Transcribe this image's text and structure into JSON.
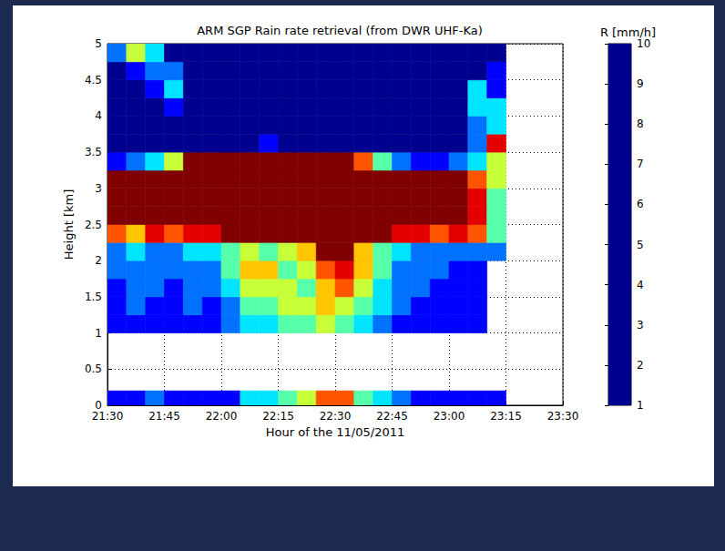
{
  "chart_data": {
    "type": "heatmap",
    "title": "ARM SGP Rain rate retrieval (from DWR UHF-Ka)",
    "x_label": "Hour of the 11/05/2011",
    "y_label": "Height [km]",
    "xlim": [
      1290,
      1410
    ],
    "xticks": [
      {
        "value": 1290,
        "label": "21:30"
      },
      {
        "value": 1305,
        "label": "21:45"
      },
      {
        "value": 1320,
        "label": "22:00"
      },
      {
        "value": 1335,
        "label": "22:15"
      },
      {
        "value": 1350,
        "label": "22:30"
      },
      {
        "value": 1365,
        "label": "22:45"
      },
      {
        "value": 1380,
        "label": "23:00"
      },
      {
        "value": 1395,
        "label": "23:15"
      },
      {
        "value": 1410,
        "label": "23:30"
      }
    ],
    "ylim": [
      0,
      5
    ],
    "yticks": [
      0,
      0.5,
      1,
      1.5,
      2,
      2.5,
      3,
      3.5,
      4,
      4.5,
      5
    ],
    "grid": true,
    "x_edges": [
      1290,
      1295,
      1300,
      1305,
      1310,
      1315,
      1320,
      1325,
      1330,
      1335,
      1340,
      1345,
      1350,
      1355,
      1360,
      1365,
      1370,
      1375,
      1380,
      1385,
      1390,
      1395
    ],
    "y_edges": [
      1,
      1.25,
      1.5,
      1.75,
      2,
      2.25,
      2.5,
      2.75,
      3,
      3.25,
      3.5,
      3.75,
      4,
      4.25,
      4.5,
      4.75,
      5
    ],
    "cells": [
      [
        2,
        2,
        2,
        2,
        2,
        2,
        3,
        4,
        4,
        5,
        5,
        6,
        5,
        4,
        3,
        2,
        2,
        2,
        2,
        2,
        null
      ],
      [
        2,
        3,
        2,
        2,
        3,
        2,
        3,
        5,
        5,
        6,
        6,
        7,
        6,
        5,
        4,
        3,
        2,
        2,
        2,
        2,
        null
      ],
      [
        2,
        3,
        3,
        2,
        3,
        3,
        4,
        6,
        6,
        6,
        5,
        7,
        8,
        6,
        4,
        3,
        3,
        2,
        2,
        2,
        null
      ],
      [
        3,
        3,
        3,
        3,
        3,
        3,
        5,
        7,
        7,
        5,
        6,
        8,
        9,
        7,
        5,
        3,
        3,
        3,
        2,
        2,
        null
      ],
      [
        3,
        4,
        3,
        3,
        4,
        4,
        5,
        6,
        5,
        6,
        7,
        10,
        10,
        7,
        5,
        4,
        3,
        3,
        3,
        3,
        3
      ],
      [
        8,
        7,
        9,
        8,
        9,
        9,
        10,
        10,
        10,
        10,
        10,
        10,
        10,
        10,
        10,
        9,
        9,
        8,
        9,
        8,
        5
      ],
      [
        10,
        10,
        10,
        10,
        10,
        10,
        10,
        10,
        10,
        10,
        10,
        10,
        10,
        10,
        10,
        10,
        10,
        10,
        10,
        9,
        5
      ],
      [
        10,
        10,
        10,
        10,
        10,
        10,
        10,
        10,
        10,
        10,
        10,
        10,
        10,
        10,
        10,
        10,
        10,
        10,
        10,
        9,
        5
      ],
      [
        10,
        10,
        10,
        10,
        10,
        10,
        10,
        10,
        10,
        10,
        10,
        10,
        10,
        10,
        10,
        10,
        10,
        10,
        10,
        8,
        6
      ],
      [
        2,
        3,
        4,
        6,
        10,
        10,
        10,
        10,
        10,
        10,
        10,
        10,
        10,
        8,
        5,
        3,
        2,
        2,
        3,
        4,
        6
      ],
      [
        1,
        1,
        1,
        1,
        1,
        1,
        1,
        1,
        2,
        1,
        1,
        1,
        1,
        1,
        1,
        1,
        1,
        1,
        1,
        3,
        9
      ],
      [
        1,
        1,
        1,
        1,
        1,
        1,
        1,
        1,
        1,
        1,
        1,
        1,
        1,
        1,
        1,
        1,
        1,
        1,
        1,
        3,
        4
      ],
      [
        1,
        1,
        1,
        2,
        1,
        1,
        1,
        1,
        1,
        1,
        1,
        1,
        1,
        1,
        1,
        1,
        1,
        1,
        1,
        4,
        4
      ],
      [
        1,
        1,
        2,
        4,
        1,
        1,
        1,
        1,
        1,
        1,
        1,
        1,
        1,
        1,
        1,
        1,
        1,
        1,
        1,
        4,
        2
      ],
      [
        1,
        2,
        3,
        3,
        1,
        1,
        1,
        1,
        1,
        1,
        1,
        1,
        1,
        1,
        1,
        1,
        1,
        1,
        1,
        1,
        2
      ],
      [
        3,
        6,
        4,
        1,
        1,
        1,
        1,
        1,
        1,
        1,
        1,
        1,
        1,
        1,
        1,
        1,
        1,
        1,
        1,
        1,
        1
      ]
    ],
    "surface_band": [
      0,
      0.2
    ],
    "surface_values": [
      2,
      2,
      3,
      2,
      2,
      2,
      2,
      4,
      4,
      5,
      6,
      8,
      8,
      5,
      4,
      3,
      2,
      2,
      2,
      2,
      2
    ],
    "colorbar_label": "R [mm/h]",
    "colorbar_range": [
      1,
      10
    ],
    "colorbar_ticks": [
      1,
      2,
      3,
      4,
      5,
      6,
      7,
      8,
      9,
      10
    ]
  }
}
